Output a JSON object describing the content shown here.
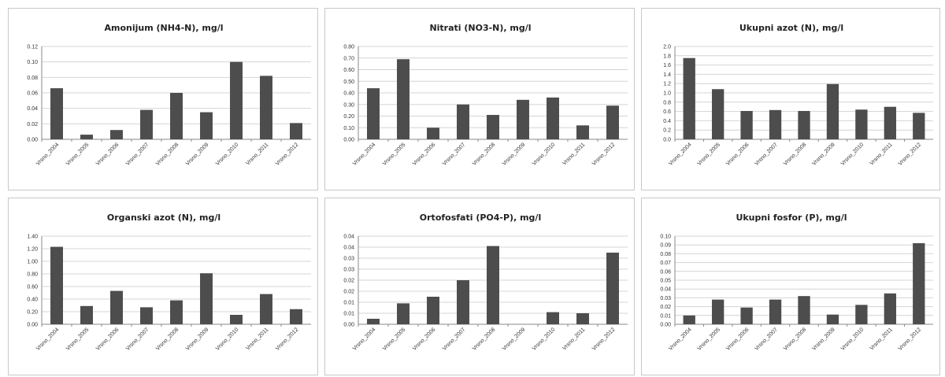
{
  "colors": {
    "bar": "#4d4d4d",
    "grid": "#d4d4d4",
    "axis": "#888888",
    "border": "#c8c8c8"
  },
  "chart_data": [
    {
      "type": "bar",
      "title": "Amonijum (NH4-N), mg/l",
      "categories": [
        "Vrsno_2004",
        "Vrsno_2005",
        "Vrsno_2006",
        "Vrsno_2007",
        "Vrsno_2008",
        "Vrsno_2009",
        "Vrsno_2010",
        "Vrsno_2011",
        "Vrsno_2012"
      ],
      "values": [
        0.066,
        0.006,
        0.012,
        0.038,
        0.06,
        0.035,
        0.1,
        0.082,
        0.021
      ],
      "ylim": [
        0,
        0.12
      ],
      "yticks": [
        "0.00",
        "0.02",
        "0.04",
        "0.06",
        "0.08",
        "0.10",
        "0.12"
      ],
      "grid": true,
      "legend": "none"
    },
    {
      "type": "bar",
      "title": "Nitrati (NO3-N), mg/l",
      "categories": [
        "Vrsno_2004",
        "Vrsno_2005",
        "Vrsno_2006",
        "Vrsno_2007",
        "Vrsno_2008",
        "Vrsno_2009",
        "Vrsno_2010",
        "Vrsno_2011",
        "Vrsno_2012"
      ],
      "values": [
        0.44,
        0.69,
        0.1,
        0.3,
        0.21,
        0.34,
        0.36,
        0.12,
        0.29
      ],
      "ylim": [
        0,
        0.8
      ],
      "yticks": [
        "0.00",
        "0.10",
        "0.20",
        "0.30",
        "0.40",
        "0.50",
        "0.60",
        "0.70",
        "0.80"
      ],
      "grid": true,
      "legend": "none"
    },
    {
      "type": "bar",
      "title": "Ukupni azot (N), mg/l",
      "categories": [
        "Vrsno_2004",
        "Vrsno_2005",
        "Vrsno_2006",
        "Vrsno_2007",
        "Vrsno_2008",
        "Vrsno_2009",
        "Vrsno_2010",
        "Vrsno_2011",
        "Vrsno_2012"
      ],
      "values": [
        1.75,
        1.08,
        0.61,
        0.63,
        0.61,
        1.19,
        0.64,
        0.7,
        0.57
      ],
      "ylim": [
        0,
        2.0
      ],
      "yticks": [
        "0.0",
        "0.2",
        "0.4",
        "0.6",
        "0.8",
        "1.0",
        "1.2",
        "1.4",
        "1.6",
        "1.8",
        "2.0"
      ],
      "grid": true,
      "legend": "none"
    },
    {
      "type": "bar",
      "title": "Organski azot (N), mg/l",
      "categories": [
        "Vrsno_2004",
        "Vrsno_2005",
        "Vrsno_2006",
        "Vrsno_2007",
        "Vrsno_2008",
        "Vrsno_2009",
        "Vrsno_2010",
        "Vrsno_2011",
        "Vrsno_2012"
      ],
      "values": [
        1.23,
        0.29,
        0.53,
        0.27,
        0.38,
        0.81,
        0.15,
        0.48,
        0.24
      ],
      "ylim": [
        0,
        1.4
      ],
      "yticks": [
        "0.00",
        "0.20",
        "0.40",
        "0.60",
        "0.80",
        "1.00",
        "1.20",
        "1.40"
      ],
      "grid": true,
      "legend": "none"
    },
    {
      "type": "bar",
      "title": "Ortofosfati (PO4-P), mg/l",
      "categories": [
        "Vrsno_2004",
        "Vrsno_2005",
        "Vrsno_2006",
        "Vrsno_2007",
        "Vrsno_2008",
        "Vrsno_2009",
        "Vrsno_2010",
        "Vrsno_2011",
        "Vrsno_2012"
      ],
      "values": [
        0.0025,
        0.0095,
        0.0125,
        0.02,
        0.0355,
        0.0,
        0.0055,
        0.005,
        0.0325
      ],
      "ylim": [
        0,
        0.04
      ],
      "yticks": [
        "0.00",
        "0.01",
        "0.01",
        "0.02",
        "0.02",
        "0.03",
        "0.03",
        "0.04",
        "0.04"
      ],
      "grid": true,
      "legend": "none"
    },
    {
      "type": "bar",
      "title": "Ukupni fosfor (P), mg/l",
      "categories": [
        "Vrsno_2004",
        "Vrsno_2005",
        "Vrsno_2006",
        "Vrsno_2007",
        "Vrsno_2008",
        "Vrsno_2009",
        "Vrsno_2010",
        "Vrsno_2011",
        "Vrsno_2012"
      ],
      "values": [
        0.01,
        0.028,
        0.019,
        0.028,
        0.032,
        0.011,
        0.022,
        0.035,
        0.092
      ],
      "ylim": [
        0,
        0.1
      ],
      "yticks": [
        "0.00",
        "0.01",
        "0.02",
        "0.03",
        "0.04",
        "0.05",
        "0.06",
        "0.07",
        "0.08",
        "0.09",
        "0.10"
      ],
      "grid": true,
      "legend": "none"
    }
  ]
}
